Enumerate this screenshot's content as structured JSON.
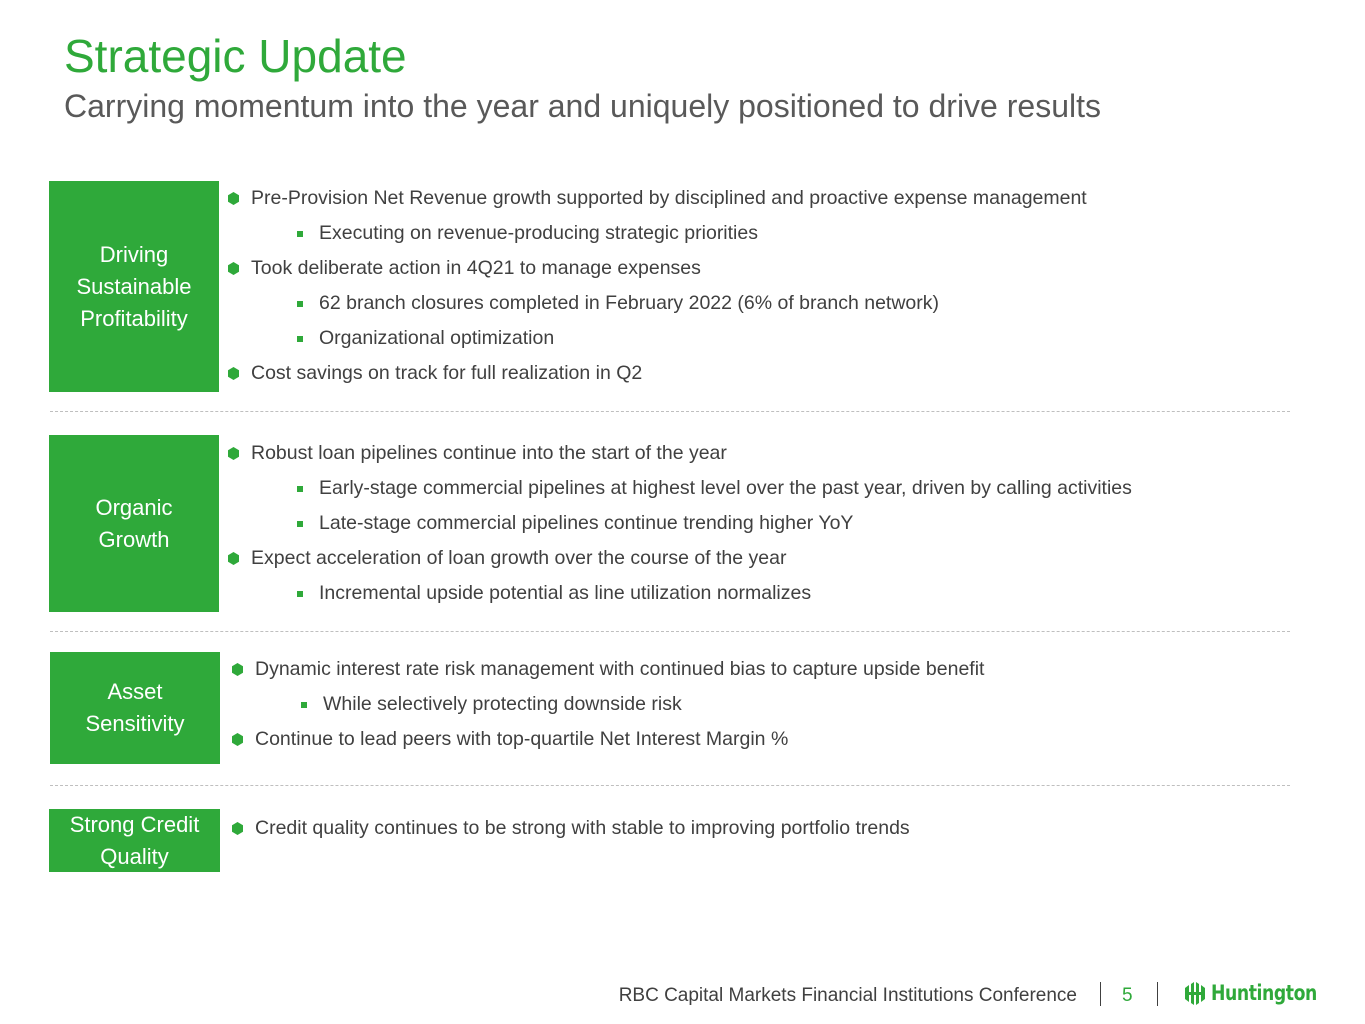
{
  "header": {
    "title": "Strategic Update",
    "subtitle": "Carrying momentum into the year and uniquely positioned to drive results"
  },
  "sections": [
    {
      "label": "Driving Sustainable Profitability",
      "items": [
        {
          "level": 1,
          "text": "Pre-Provision Net Revenue growth supported by disciplined and proactive expense management"
        },
        {
          "level": 2,
          "text": "Executing on revenue-producing strategic priorities"
        },
        {
          "level": 1,
          "text": "Took deliberate action in 4Q21 to manage expenses"
        },
        {
          "level": 2,
          "text": "62 branch closures completed in February 2022 (6% of branch network)"
        },
        {
          "level": 2,
          "text": "Organizational optimization"
        },
        {
          "level": 1,
          "text": "Cost savings on track for full realization in Q2"
        }
      ]
    },
    {
      "label": "Organic Growth",
      "items": [
        {
          "level": 1,
          "text": "Robust loan pipelines continue into the start of the year"
        },
        {
          "level": 2,
          "text": "Early-stage commercial pipelines at highest level over the past year, driven by calling activities"
        },
        {
          "level": 2,
          "text": "Late-stage commercial pipelines continue trending higher YoY"
        },
        {
          "level": 1,
          "text": "Expect acceleration of loan growth over the course of the year"
        },
        {
          "level": 2,
          "text": "Incremental upside potential as line utilization normalizes"
        }
      ]
    },
    {
      "label": "Asset Sensitivity",
      "items": [
        {
          "level": 1,
          "text": "Dynamic interest rate risk management with continued bias to capture upside benefit"
        },
        {
          "level": 2,
          "text": "While selectively protecting downside risk"
        },
        {
          "level": 1,
          "text": "Continue to lead peers with top-quartile Net Interest Margin %"
        }
      ]
    },
    {
      "label": "Strong Credit Quality",
      "items": [
        {
          "level": 1,
          "text": "Credit quality continues to be strong with stable to improving portfolio trends"
        }
      ]
    }
  ],
  "footer": {
    "conference": "RBC Capital Markets Financial Institutions Conference",
    "page_number": "5",
    "logo_text": "Huntington"
  },
  "colors": {
    "accent": "#2fa93a",
    "text": "#404040",
    "subtitle": "#595959",
    "divider": "#bfbfbf"
  }
}
